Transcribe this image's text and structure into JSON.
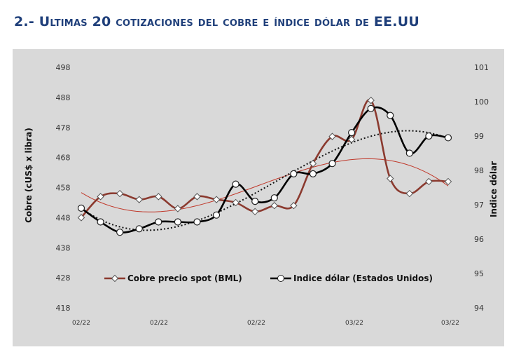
{
  "title": "2.- Ultimas 20 cotizaciones del cobre e índice dólar de EE.UU",
  "chart_data": {
    "type": "line",
    "x": [
      "02/22",
      "02/22",
      "02/22",
      "02/22",
      "02/22",
      "02/22",
      "02/22",
      "02/22",
      "02/22",
      "02/22",
      "02/22",
      "03/22",
      "03/22",
      "03/22",
      "03/22",
      "03/22",
      "03/22",
      "03/22",
      "03/22",
      "03/22"
    ],
    "x_tick_labels": [
      "02/22",
      "02/22",
      "02/22",
      "03/22",
      "03/22"
    ],
    "y_left": {
      "label": "Cobre (cUS$ x libra)",
      "ticks": [
        418,
        428,
        438,
        448,
        458,
        468,
        478,
        488,
        498
      ],
      "lim": [
        418,
        498
      ]
    },
    "y_right": {
      "label": "Indice dólar",
      "ticks": [
        94,
        95,
        96,
        97,
        98,
        99,
        100,
        101
      ],
      "lim": [
        94,
        101
      ]
    },
    "series": [
      {
        "name": "Cobre precio spot (BML)",
        "axis": "left",
        "color": "#8b3a2f",
        "marker": "diamond",
        "values": [
          448,
          455,
          456,
          454,
          455,
          451,
          455,
          454,
          453,
          450,
          452,
          452,
          466,
          475,
          474,
          487,
          461,
          456,
          460,
          460
        ]
      },
      {
        "name": "Indice dólar (Estados Unidos)",
        "axis": "right",
        "color": "#000000",
        "marker": "circle",
        "values": [
          96.9,
          96.5,
          96.2,
          96.3,
          96.5,
          96.5,
          96.5,
          96.7,
          97.6,
          97.1,
          97.2,
          97.9,
          97.9,
          98.2,
          99.1,
          99.8,
          99.6,
          98.5,
          99.0,
          98.95
        ]
      }
    ],
    "trendlines": [
      {
        "series": "Cobre precio spot (BML)",
        "style": "solid-thin",
        "color": "#c0392b"
      },
      {
        "series": "Indice dólar (Estados Unidos)",
        "style": "dotted",
        "color": "#111111"
      }
    ],
    "legend_placement": "bottom-inside"
  }
}
